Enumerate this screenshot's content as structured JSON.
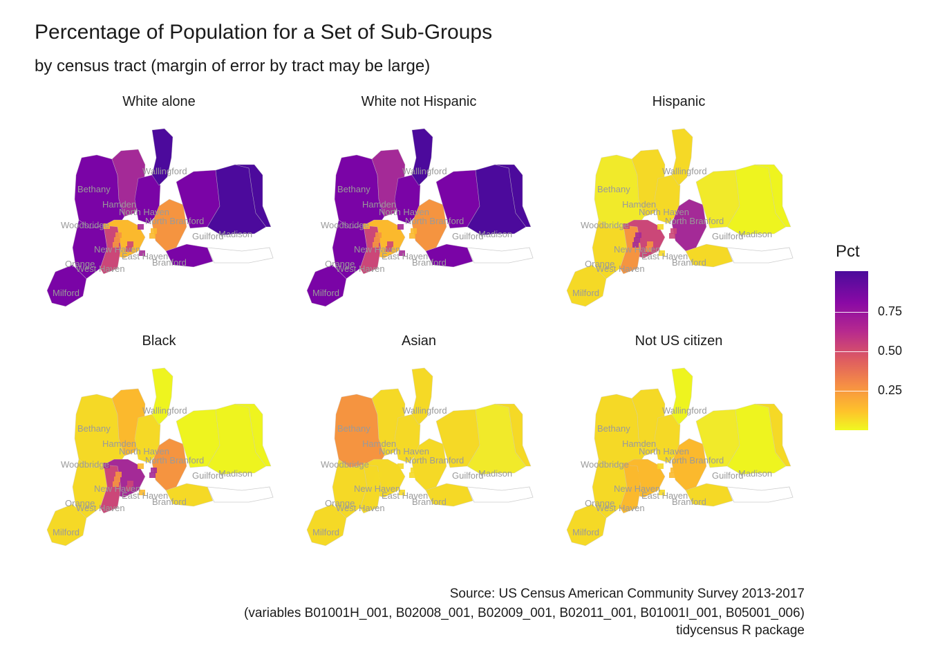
{
  "title": "Percentage of Population for a Set of Sub-Groups",
  "subtitle": "by census tract (margin of error by tract may be large)",
  "panels": [
    {
      "title": "White alone",
      "scheme": "high"
    },
    {
      "title": "White not Hispanic",
      "scheme": "high"
    },
    {
      "title": "Hispanic",
      "scheme": "hispanic"
    },
    {
      "title": "Black",
      "scheme": "black"
    },
    {
      "title": "Asian",
      "scheme": "asian"
    },
    {
      "title": "Not US citizen",
      "scheme": "citizen"
    }
  ],
  "towns": [
    "Wallingford",
    "Bethany",
    "Hamden",
    "North Haven",
    "Woodbridge",
    "North Branford",
    "Guilford",
    "Madison",
    "New Haven",
    "East Haven",
    "Orange",
    "Branford",
    "West Haven",
    "Milford"
  ],
  "legend": {
    "title": "Pct",
    "ticks": [
      "0.75",
      "0.50",
      "0.25"
    ],
    "scale": "plasma",
    "colors": [
      "#0d0887",
      "#6a00a8",
      "#b12a90",
      "#e16462",
      "#fca636",
      "#f0f921"
    ]
  },
  "caption": [
    "Source: US Census American Community Survey 2013-2017",
    "(variables B01001H_001, B02008_001, B02009_001, B02011_001, B01001I_001, B05001_006)",
    "tidycensus R package"
  ]
}
